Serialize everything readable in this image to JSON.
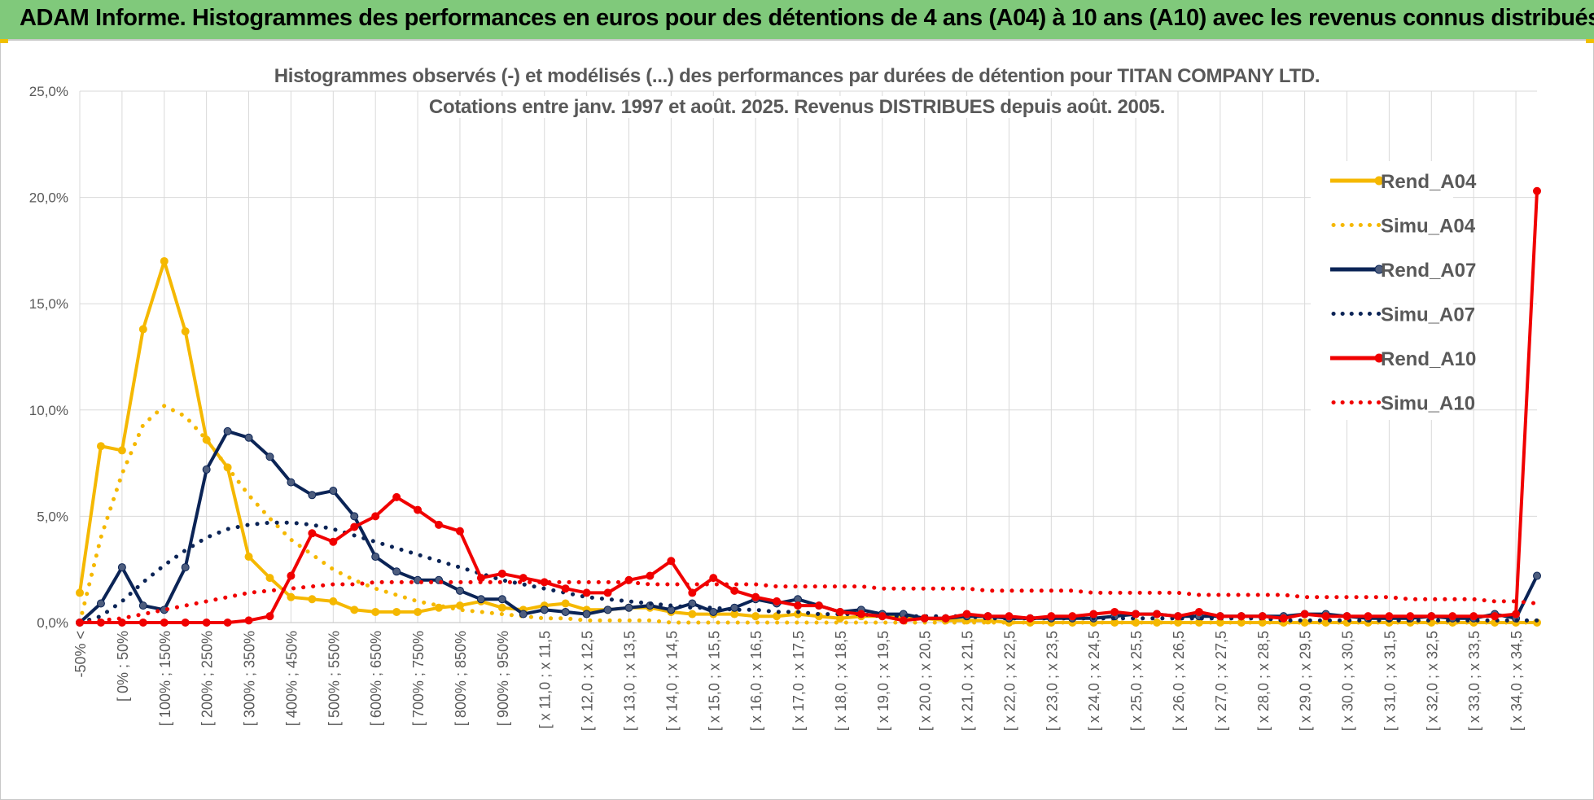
{
  "header": {
    "title": "ADAM Informe. Histogrammes des performances en euros pour des détentions de 4 ans (A04) à 10 ans (A10) avec les revenus connus distribués"
  },
  "colors": {
    "header_bg": "#80c97b",
    "a04": "#f5b800",
    "a07": "#0b2456",
    "a10": "#f00000",
    "grid": "#d9d9d9",
    "axis_text": "#595959"
  },
  "chart_data": {
    "type": "line",
    "title": "Histogrammes observés (-) et modélisés (...) des performances par durées de détention pour TITAN COMPANY LTD.",
    "subtitle": "Cotations entre janv. 1997 et août. 2025. Revenus DISTRIBUES depuis août. 2005.",
    "xlabel": "",
    "ylabel": "",
    "ylim": [
      0,
      0.25
    ],
    "yticks": [
      "0,0%",
      "5,0%",
      "10,0%",
      "15,0%",
      "20,0%",
      "25,0%"
    ],
    "grid": true,
    "legend_position": "right",
    "x_labels": [
      "-50% <",
      "[ 0% ; 50%",
      "[ 100% ; 150%",
      "[ 200% ; 250%",
      "[ 300% ; 350%",
      "[ 400% ; 450%",
      "[ 500% ; 550%",
      "[ 600% ; 650%",
      "[ 700% ; 750%",
      "[ 800% ; 850%",
      "[ 900% ; 950%",
      "[ x 11,0 ; x 11,5",
      "[ x 12,0 ; x 12,5",
      "[ x 13,0 ; x 13,5",
      "[ x 14,0 ; x 14,5",
      "[ x 15,0 ; x 15,5",
      "[ x 16,0 ; x 16,5",
      "[ x 17,0 ; x 17,5",
      "[ x 18,0 ; x 18,5",
      "[ x 19,0 ; x 19,5",
      "[ x 20,0 ; x 20,5",
      "[ x 21,0 ; x 21,5",
      "[ x 22,0 ; x 22,5",
      "[ x 23,0 ; x 23,5",
      "[ x 24,0 ; x 24,5",
      "[ x 25,0 ; x 25,5",
      "[ x 26,0 ; x 26,5",
      "[ x 27,0 ; x 27,5",
      "[ x 28,0 ; x 28,5",
      "[ x 29,0 ; x 29,5",
      "[ x 30,0 ; x 30,5",
      "[ x 31,0 ; x 31,5",
      "[ x 32,0 ; x 32,5",
      "[ x 33,0 ; x 33,5",
      "[ x 34,0 ; x 34,5"
    ],
    "series": [
      {
        "name": "Rend_A04",
        "style": "solid-markers",
        "color": "#f5b800",
        "values": [
          0.014,
          0.083,
          0.081,
          0.138,
          0.17,
          0.137,
          0.086,
          0.073,
          0.031,
          0.021,
          0.012,
          0.011,
          0.01,
          0.006,
          0.005,
          0.005,
          0.005,
          0.007,
          0.008,
          0.01,
          0.007,
          0.006,
          0.008,
          0.009,
          0.006,
          0.006,
          0.007,
          0.007,
          0.005,
          0.004,
          0.004,
          0.004,
          0.003,
          0.003,
          0.004,
          0.003,
          0.002,
          0.003,
          0.003,
          0.003,
          0.002,
          0.001,
          0.001,
          0.001,
          0.0,
          0.0,
          0.0,
          0.0,
          0.0,
          0.0,
          0.0,
          0.0,
          0.0,
          0.0,
          0.0,
          0.0,
          0.0,
          0.0,
          0.0,
          0.0,
          0.0,
          0.0,
          0.0,
          0.0,
          0.0,
          0.0,
          0.0,
          0.0,
          0.0,
          0.0
        ]
      },
      {
        "name": "Simu_A04",
        "style": "dotted",
        "color": "#f5b800",
        "values": [
          0.0,
          0.04,
          0.07,
          0.093,
          0.102,
          0.097,
          0.086,
          0.073,
          0.06,
          0.049,
          0.039,
          0.032,
          0.025,
          0.02,
          0.016,
          0.013,
          0.01,
          0.008,
          0.006,
          0.005,
          0.004,
          0.003,
          0.002,
          0.002,
          0.001,
          0.001,
          0.001,
          0.001,
          0.0,
          0.0,
          0.0,
          0.0,
          0.0,
          0.0,
          0.0,
          0.0,
          0.0,
          0.0,
          0.0,
          0.0,
          0.0,
          0.0,
          0.0,
          0.0,
          0.0,
          0.0,
          0.0,
          0.0,
          0.0,
          0.0,
          0.0,
          0.0,
          0.0,
          0.0,
          0.0,
          0.0,
          0.0,
          0.0,
          0.0,
          0.0,
          0.0,
          0.0,
          0.0,
          0.0,
          0.0,
          0.0,
          0.0,
          0.0,
          0.0,
          0.0
        ]
      },
      {
        "name": "Rend_A07",
        "style": "solid-markers",
        "color": "#0b2456",
        "values": [
          0.0,
          0.009,
          0.026,
          0.008,
          0.006,
          0.026,
          0.072,
          0.09,
          0.087,
          0.078,
          0.066,
          0.06,
          0.062,
          0.05,
          0.031,
          0.024,
          0.02,
          0.02,
          0.015,
          0.011,
          0.011,
          0.004,
          0.006,
          0.005,
          0.004,
          0.006,
          0.007,
          0.008,
          0.006,
          0.009,
          0.005,
          0.007,
          0.011,
          0.009,
          0.011,
          0.008,
          0.005,
          0.006,
          0.004,
          0.004,
          0.002,
          0.002,
          0.003,
          0.003,
          0.002,
          0.002,
          0.002,
          0.002,
          0.002,
          0.003,
          0.004,
          0.004,
          0.003,
          0.003,
          0.003,
          0.003,
          0.003,
          0.003,
          0.004,
          0.004,
          0.003,
          0.002,
          0.002,
          0.002,
          0.003,
          0.002,
          0.002,
          0.004,
          0.002,
          0.022
        ]
      },
      {
        "name": "Simu_A07",
        "style": "dotted",
        "color": "#0b2456",
        "values": [
          0.0,
          0.003,
          0.01,
          0.019,
          0.027,
          0.034,
          0.04,
          0.044,
          0.046,
          0.047,
          0.047,
          0.046,
          0.044,
          0.041,
          0.038,
          0.035,
          0.032,
          0.029,
          0.026,
          0.023,
          0.02,
          0.018,
          0.016,
          0.014,
          0.012,
          0.011,
          0.01,
          0.009,
          0.008,
          0.007,
          0.007,
          0.006,
          0.006,
          0.005,
          0.005,
          0.004,
          0.004,
          0.004,
          0.003,
          0.003,
          0.003,
          0.003,
          0.003,
          0.002,
          0.002,
          0.002,
          0.002,
          0.002,
          0.002,
          0.002,
          0.002,
          0.002,
          0.002,
          0.002,
          0.002,
          0.002,
          0.002,
          0.001,
          0.001,
          0.001,
          0.001,
          0.001,
          0.001,
          0.001,
          0.001,
          0.001,
          0.001,
          0.001,
          0.001,
          0.001
        ]
      },
      {
        "name": "Rend_A10",
        "style": "solid-markers",
        "color": "#f00000",
        "values": [
          0.0,
          0.0,
          0.0,
          0.0,
          0.0,
          0.0,
          0.0,
          0.0,
          0.001,
          0.003,
          0.022,
          0.042,
          0.038,
          0.045,
          0.05,
          0.059,
          0.053,
          0.046,
          0.043,
          0.021,
          0.023,
          0.021,
          0.019,
          0.016,
          0.014,
          0.014,
          0.02,
          0.022,
          0.029,
          0.014,
          0.021,
          0.015,
          0.012,
          0.01,
          0.008,
          0.008,
          0.005,
          0.004,
          0.003,
          0.001,
          0.002,
          0.002,
          0.004,
          0.003,
          0.003,
          0.002,
          0.003,
          0.003,
          0.004,
          0.005,
          0.004,
          0.004,
          0.003,
          0.005,
          0.003,
          0.003,
          0.003,
          0.002,
          0.004,
          0.003,
          0.003,
          0.003,
          0.003,
          0.003,
          0.003,
          0.003,
          0.003,
          0.003,
          0.004,
          0.203
        ]
      },
      {
        "name": "Simu_A10",
        "style": "dotted",
        "color": "#f00000",
        "values": [
          0.0,
          0.001,
          0.002,
          0.004,
          0.006,
          0.008,
          0.01,
          0.012,
          0.014,
          0.015,
          0.016,
          0.017,
          0.018,
          0.018,
          0.019,
          0.019,
          0.019,
          0.019,
          0.019,
          0.019,
          0.019,
          0.019,
          0.019,
          0.019,
          0.019,
          0.019,
          0.019,
          0.018,
          0.018,
          0.018,
          0.018,
          0.018,
          0.018,
          0.017,
          0.017,
          0.017,
          0.017,
          0.017,
          0.016,
          0.016,
          0.016,
          0.016,
          0.016,
          0.015,
          0.015,
          0.015,
          0.015,
          0.015,
          0.014,
          0.014,
          0.014,
          0.014,
          0.014,
          0.013,
          0.013,
          0.013,
          0.013,
          0.013,
          0.012,
          0.012,
          0.012,
          0.012,
          0.012,
          0.011,
          0.011,
          0.011,
          0.011,
          0.01,
          0.01,
          0.009
        ]
      }
    ]
  }
}
